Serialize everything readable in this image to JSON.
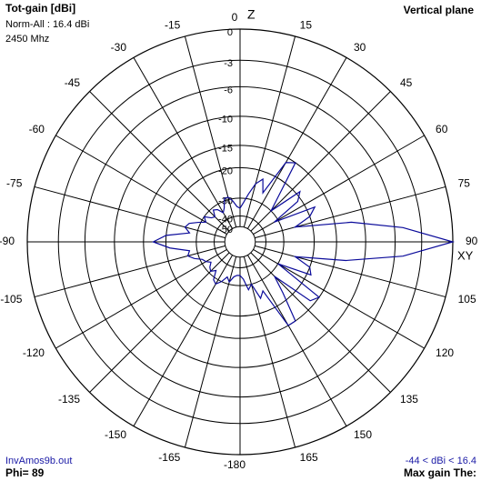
{
  "chart_data": {
    "type": "polar",
    "title": "Tot-gain [dBi]",
    "subtitle": "Norm-All : 16.4 dBi",
    "frequency": "2450 Mhz",
    "plane": "Vertical plane",
    "top_axis_label": "Z",
    "right_axis_label": "XY",
    "file": "InvAmos9b.out",
    "phi": "Phi= 89",
    "range_note": "-44 < dBi < 16.4",
    "max_gain": "Max gain The:",
    "x": [
      -180,
      -175,
      -170,
      -165,
      -160,
      -155,
      -150,
      -145,
      -140,
      -135,
      -130,
      -125,
      -120,
      -115,
      -110,
      -105,
      -100,
      -95,
      -90,
      -85,
      -80,
      -75,
      -70,
      -65,
      -60,
      -55,
      -50,
      -45,
      -40,
      -35,
      -30,
      -25,
      -20,
      -15,
      -10,
      -5,
      0,
      5,
      10,
      15,
      20,
      25,
      30,
      35,
      40,
      45,
      50,
      55,
      60,
      65,
      70,
      75,
      80,
      85,
      90,
      95,
      100,
      105,
      110,
      115,
      120,
      125,
      130,
      135,
      140,
      145,
      150,
      155,
      160,
      165,
      170,
      175,
      180
    ],
    "series": [
      {
        "name": "Tot-gain",
        "color": "#0a0a9a",
        "values": [
          -35,
          -35,
          -34,
          -31,
          -33,
          -30,
          -28,
          -29,
          -33,
          -31,
          -32,
          -34,
          -32,
          -31,
          -28,
          -26,
          -27,
          -21,
          -17,
          -20,
          -27,
          -25,
          -26,
          -29,
          -32,
          -30,
          -33,
          -34,
          -31,
          -32,
          -35,
          -33,
          -29,
          -29,
          -31,
          -34,
          -35,
          -32,
          -28,
          -24,
          -22,
          -26,
          -16,
          -15,
          -24,
          -30,
          -19,
          -21,
          -32,
          -18,
          -20,
          -25,
          -12,
          -5,
          0,
          -5,
          -13,
          -25,
          -20,
          -19,
          -30,
          -15,
          -16,
          -28,
          -22,
          -15,
          -15,
          -26,
          -24,
          -30,
          -28,
          -33,
          -35
        ]
      }
    ],
    "rticks": [
      0,
      -3,
      -6,
      -10,
      -15,
      -20,
      -30,
      -40,
      -50
    ],
    "thetaticks": [
      -180,
      -165,
      -150,
      -135,
      -120,
      -105,
      -90,
      -75,
      -60,
      -45,
      -30,
      -15,
      0,
      15,
      30,
      45,
      60,
      75,
      90,
      105,
      120,
      135,
      150,
      165
    ]
  }
}
